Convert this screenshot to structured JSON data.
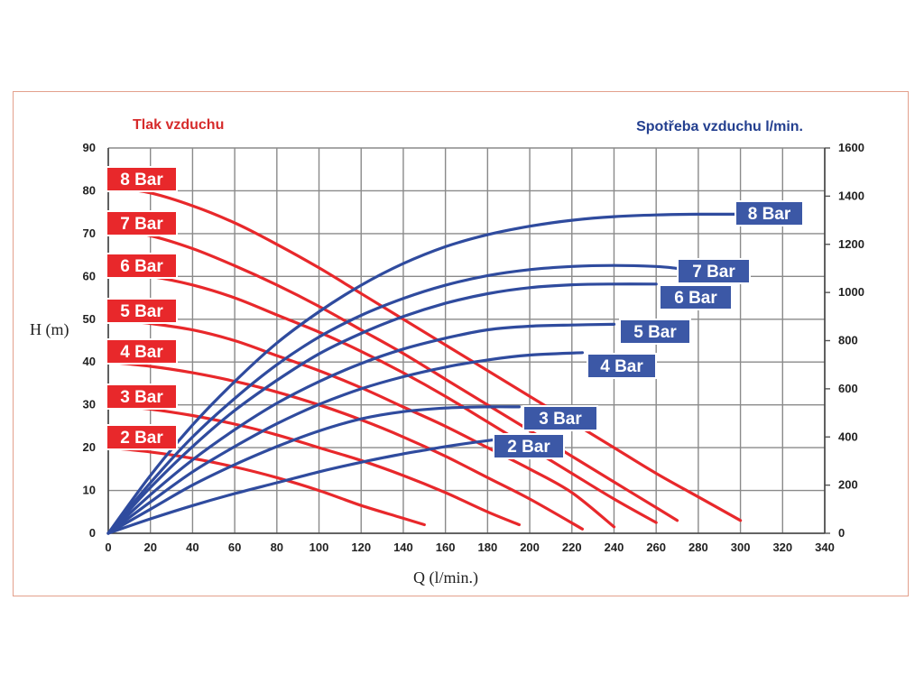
{
  "chart_data": {
    "type": "line",
    "header_left": "Tlak vzduchu",
    "header_right": "Spotřeba vzduchu l/min.",
    "xlabel": "Q (l/min.)",
    "ylabel": "H (m)",
    "xlim": [
      0,
      340
    ],
    "ylim": [
      0,
      90
    ],
    "y2lim": [
      0,
      1600
    ],
    "x_ticks": [
      0,
      20,
      40,
      60,
      80,
      100,
      120,
      140,
      160,
      180,
      200,
      220,
      240,
      260,
      280,
      300,
      320,
      340
    ],
    "y_ticks": [
      0,
      10,
      20,
      30,
      40,
      50,
      60,
      70,
      80,
      90
    ],
    "y2_ticks": [
      0,
      200,
      400,
      600,
      800,
      1000,
      1200,
      1400,
      1600
    ],
    "grid": true,
    "colors": {
      "head": "#e8282b",
      "air": "#2f4b9e",
      "badge_red": "#e8282b",
      "badge_blue": "#3c58a6"
    },
    "head_curves": [
      {
        "name": "8 Bar",
        "x": [
          0,
          20,
          40,
          60,
          80,
          100,
          120,
          140,
          160,
          180,
          200,
          220,
          240,
          260,
          280,
          300
        ],
        "y": [
          81,
          79.5,
          76.5,
          72.5,
          67.5,
          62,
          56,
          50,
          44,
          38,
          32,
          26,
          20,
          14,
          8.5,
          3
        ]
      },
      {
        "name": "7 Bar",
        "x": [
          0,
          20,
          40,
          60,
          80,
          100,
          120,
          140,
          160,
          180,
          200,
          220,
          240,
          260,
          270
        ],
        "y": [
          71,
          69.5,
          66.5,
          62.5,
          58,
          53,
          47.5,
          42,
          36,
          30,
          24,
          18,
          12,
          6,
          3
        ]
      },
      {
        "name": "6 Bar",
        "x": [
          0,
          20,
          40,
          60,
          80,
          100,
          120,
          140,
          160,
          180,
          200,
          220,
          240,
          260
        ],
        "y": [
          61,
          60,
          58,
          55,
          51,
          47,
          42.5,
          37.5,
          32,
          26,
          20,
          14,
          8,
          2.5
        ]
      },
      {
        "name": "5 Bar",
        "x": [
          0,
          20,
          40,
          60,
          80,
          100,
          120,
          140,
          160,
          180,
          200,
          220,
          240
        ],
        "y": [
          50,
          49,
          47.5,
          45,
          41.5,
          38,
          34,
          29.5,
          25,
          20,
          15,
          9.5,
          1.5
        ]
      },
      {
        "name": "4 Bar",
        "x": [
          0,
          20,
          40,
          60,
          80,
          100,
          120,
          140,
          160,
          180,
          200,
          225
        ],
        "y": [
          40,
          39,
          37.5,
          35.5,
          33,
          30,
          26.5,
          22.5,
          18,
          13,
          8,
          1
        ]
      },
      {
        "name": "3 Bar",
        "x": [
          0,
          20,
          40,
          60,
          80,
          100,
          120,
          140,
          160,
          180,
          195
        ],
        "y": [
          30,
          29,
          27.5,
          25.5,
          23,
          20,
          17,
          13.5,
          9.5,
          5,
          2
        ]
      },
      {
        "name": "2 Bar",
        "x": [
          0,
          20,
          40,
          60,
          80,
          100,
          120,
          140,
          150
        ],
        "y": [
          20,
          19,
          17.5,
          15.5,
          13,
          10,
          6.5,
          3.5,
          2
        ]
      }
    ],
    "air_curves": [
      {
        "name": "8 Bar",
        "x": [
          0,
          20,
          40,
          60,
          80,
          100,
          120,
          140,
          160,
          180,
          200,
          220,
          240,
          260,
          280,
          300
        ],
        "y": [
          0,
          240,
          450,
          630,
          790,
          920,
          1030,
          1120,
          1190,
          1240,
          1275,
          1300,
          1315,
          1322,
          1325,
          1325
        ]
      },
      {
        "name": "7 Bar",
        "x": [
          0,
          20,
          40,
          60,
          80,
          100,
          120,
          140,
          160,
          180,
          200,
          220,
          240,
          260,
          270
        ],
        "y": [
          0,
          210,
          400,
          560,
          700,
          815,
          905,
          975,
          1030,
          1070,
          1095,
          1108,
          1112,
          1108,
          1100
        ]
      },
      {
        "name": "6 Bar",
        "x": [
          0,
          20,
          40,
          60,
          80,
          100,
          120,
          140,
          160,
          180,
          200,
          220,
          240,
          260
        ],
        "y": [
          0,
          190,
          360,
          510,
          635,
          745,
          830,
          900,
          955,
          995,
          1020,
          1032,
          1035,
          1035
        ]
      },
      {
        "name": "5 Bar",
        "x": [
          0,
          20,
          40,
          60,
          80,
          100,
          120,
          140,
          160,
          180,
          200,
          220,
          240
        ],
        "y": [
          0,
          160,
          305,
          430,
          540,
          630,
          705,
          765,
          810,
          845.0,
          860.0,
          865.0,
          868.0
        ]
      },
      {
        "name": "4 Bar",
        "x": [
          0,
          20,
          40,
          60,
          80,
          100,
          120,
          140,
          160,
          180,
          200,
          225
        ],
        "y": [
          0,
          130,
          255,
          360,
          455,
          535,
          600,
          650,
          690,
          720,
          740,
          750
        ]
      },
      {
        "name": "3 Bar",
        "x": [
          0,
          20,
          40,
          60,
          80,
          100,
          120,
          140,
          160,
          180,
          195
        ],
        "y": [
          0,
          100,
          200,
          285,
          360,
          425,
          475,
          505,
          520,
          525,
          525
        ]
      },
      {
        "name": "2 Bar",
        "x": [
          0,
          20,
          40,
          60,
          80,
          100,
          120,
          140,
          150,
          160,
          180,
          195
        ],
        "y": [
          0,
          60,
          115,
          165,
          210,
          255,
          295,
          330,
          345,
          360,
          385,
          400
        ]
      }
    ],
    "left_badges": [
      "8 Bar",
      "7 Bar",
      "6 Bar",
      "5 Bar",
      "4 Bar",
      "3 Bar",
      "2 Bar"
    ],
    "right_badges": [
      "8 Bar",
      "7 Bar",
      "6 Bar",
      "5 Bar",
      "4 Bar",
      "3 Bar",
      "2 Bar"
    ]
  }
}
